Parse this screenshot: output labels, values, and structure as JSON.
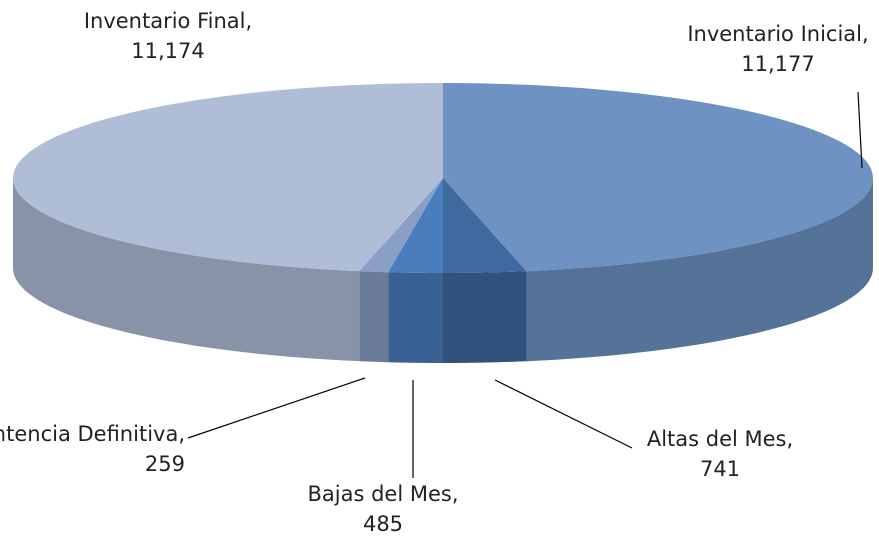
{
  "chart_data": {
    "type": "pie3d",
    "categories": [
      "Inventario Inicial,",
      "Altas del Mes,",
      "Bajas del Mes,",
      "Sentencia Definitiva,",
      "Inventario Final,"
    ],
    "values": [
      11177,
      741,
      485,
      259,
      11174
    ],
    "value_labels": [
      "11,177",
      "741",
      "485",
      "259",
      "11,174"
    ],
    "colors": [
      "#6e93c3",
      "#3f6a9f",
      "#4a7dbd",
      "#8a9fc6",
      "#b0bdd7"
    ]
  }
}
